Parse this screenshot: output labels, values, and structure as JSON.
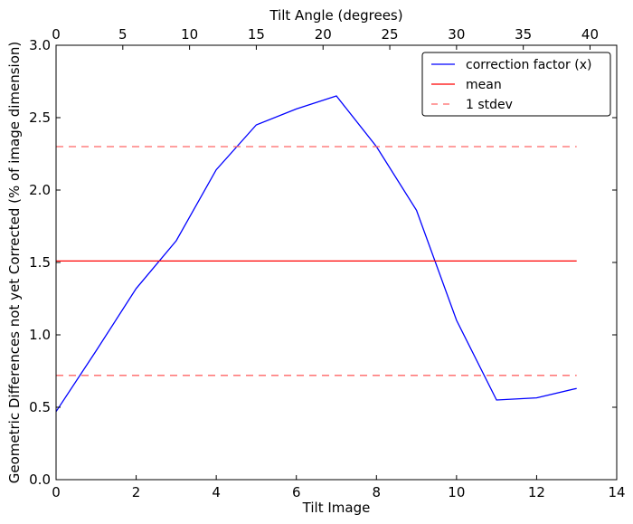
{
  "chart_data": {
    "type": "line",
    "xlabel": "Tilt Image",
    "ylabel": "Geometric Differences not yet Corrected (% of image dimension)",
    "top_xlabel": "Tilt Angle (degrees)",
    "xlim": [
      0,
      14
    ],
    "ylim": [
      0.0,
      3.0
    ],
    "top_xlim": [
      0,
      42
    ],
    "x_ticks": [
      0,
      2,
      4,
      6,
      8,
      10,
      12,
      14
    ],
    "y_ticks": [
      "0.0",
      "0.5",
      "1.0",
      "1.5",
      "2.0",
      "2.5",
      "3.0"
    ],
    "top_x_ticks": [
      0,
      5,
      10,
      15,
      20,
      25,
      30,
      35,
      40
    ],
    "grid": false,
    "legend_position": "top-right",
    "series": [
      {
        "name": "correction factor (x)",
        "style": "solid",
        "color": "#0000ff",
        "x": [
          0,
          1,
          2,
          3,
          4,
          5,
          6,
          7,
          8,
          9,
          10,
          11,
          12,
          13
        ],
        "y": [
          0.47,
          0.89,
          1.32,
          1.65,
          2.14,
          2.45,
          2.56,
          2.65,
          2.3,
          1.86,
          1.1,
          0.55,
          0.565,
          0.63
        ]
      },
      {
        "name": "mean",
        "style": "solid",
        "color": "#ff0000",
        "x": [
          0,
          13
        ],
        "y": [
          1.51,
          1.51
        ]
      },
      {
        "name": "1 stdev",
        "style": "dashed",
        "color": "#ff6666",
        "x": [
          0,
          13
        ],
        "y": [
          2.3,
          2.3
        ]
      },
      {
        "name": "",
        "style": "dashed",
        "color": "#ff6666",
        "x": [
          0,
          13
        ],
        "y": [
          0.72,
          0.72
        ]
      }
    ]
  }
}
